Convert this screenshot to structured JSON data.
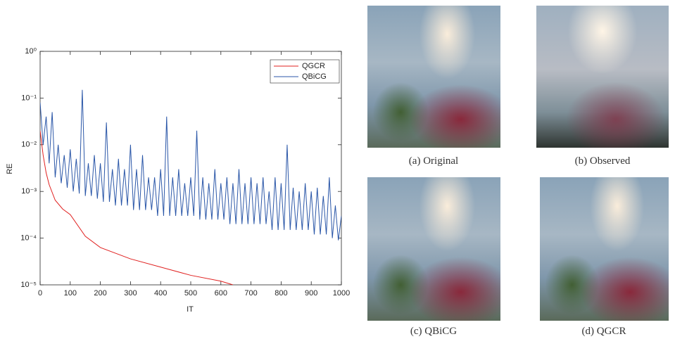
{
  "chart_data": {
    "type": "line",
    "xlabel": "IT",
    "ylabel": "RE",
    "yscale": "log",
    "xlim": [
      0,
      1000
    ],
    "xticks": [
      0,
      100,
      200,
      300,
      400,
      500,
      600,
      700,
      800,
      900,
      1000
    ],
    "ylim": [
      1e-05,
      1
    ],
    "yticks": [
      {
        "value": 1e-05,
        "label": "10⁻⁵"
      },
      {
        "value": 0.0001,
        "label": "10⁻⁴"
      },
      {
        "value": 0.001,
        "label": "10⁻³"
      },
      {
        "value": 0.01,
        "label": "10⁻²"
      },
      {
        "value": 0.1,
        "label": "10⁻¹"
      },
      {
        "value": 1,
        "label": "10⁰"
      }
    ],
    "legend": "upper right",
    "series": [
      {
        "name": "QGCR",
        "color": "#e0201f",
        "x": [
          0,
          10,
          20,
          30,
          50,
          75,
          100,
          150,
          200,
          300,
          400,
          500,
          600,
          640
        ],
        "values": [
          0.02,
          0.006,
          0.0025,
          0.0014,
          0.00065,
          0.00042,
          0.00032,
          0.00011,
          6.3e-05,
          3.6e-05,
          2.4e-05,
          1.6e-05,
          1.2e-05,
          1e-05
        ]
      },
      {
        "name": "QBiCG",
        "color": "#2b57a8",
        "x": [
          0,
          10,
          20,
          30,
          40,
          50,
          60,
          70,
          80,
          90,
          100,
          110,
          120,
          130,
          140,
          150,
          160,
          170,
          180,
          190,
          200,
          210,
          220,
          230,
          240,
          250,
          260,
          270,
          280,
          290,
          300,
          310,
          320,
          330,
          340,
          350,
          360,
          370,
          380,
          390,
          400,
          410,
          420,
          430,
          440,
          450,
          460,
          470,
          480,
          490,
          500,
          510,
          520,
          530,
          540,
          550,
          560,
          570,
          580,
          590,
          600,
          610,
          620,
          630,
          640,
          650,
          660,
          670,
          680,
          690,
          700,
          710,
          720,
          730,
          740,
          750,
          760,
          770,
          780,
          790,
          800,
          810,
          820,
          830,
          840,
          850,
          860,
          870,
          880,
          890,
          900,
          910,
          920,
          930,
          940,
          950,
          960,
          970,
          980,
          990,
          1000
        ],
        "values": [
          0.08,
          0.01,
          0.04,
          0.004,
          0.05,
          0.002,
          0.01,
          0.0015,
          0.006,
          0.0012,
          0.008,
          0.001,
          0.005,
          0.0009,
          0.15,
          0.0008,
          0.004,
          0.0008,
          0.006,
          0.0007,
          0.004,
          0.0006,
          0.03,
          0.0006,
          0.003,
          0.0005,
          0.005,
          0.0005,
          0.003,
          0.0005,
          0.01,
          0.0004,
          0.003,
          0.0004,
          0.006,
          0.0004,
          0.002,
          0.0004,
          0.002,
          0.0003,
          0.003,
          0.0003,
          0.04,
          0.0003,
          0.002,
          0.0003,
          0.003,
          0.0003,
          0.0015,
          0.0003,
          0.002,
          0.0003,
          0.02,
          0.00025,
          0.002,
          0.00025,
          0.0015,
          0.00025,
          0.003,
          0.00025,
          0.0015,
          0.00025,
          0.002,
          0.0002,
          0.0015,
          0.0002,
          0.003,
          0.0002,
          0.0015,
          0.0002,
          0.002,
          0.0002,
          0.0015,
          0.0002,
          0.002,
          0.0002,
          0.001,
          0.00015,
          0.002,
          0.00015,
          0.0015,
          0.00015,
          0.01,
          0.00015,
          0.0012,
          0.00015,
          0.001,
          0.00015,
          0.0015,
          0.00015,
          0.001,
          0.00012,
          0.0012,
          0.00012,
          0.0008,
          0.00012,
          0.002,
          0.0001,
          0.0005,
          9e-05,
          0.0003
        ]
      }
    ]
  },
  "figures": [
    {
      "caption": "(a) Original"
    },
    {
      "caption": "(b) Observed"
    },
    {
      "caption": "(c) QBiCG"
    },
    {
      "caption": "(d) QGCR"
    }
  ]
}
